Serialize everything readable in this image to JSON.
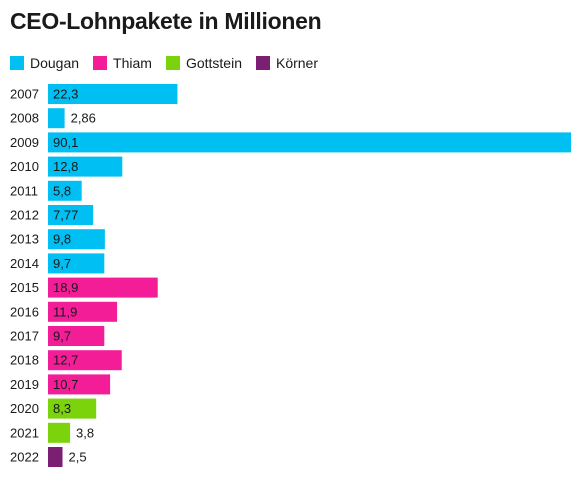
{
  "chart_data": {
    "type": "bar",
    "orientation": "horizontal",
    "title": "CEO-Lohnpakete in Millionen",
    "legend": [
      {
        "name": "Dougan",
        "color": "#00bff3"
      },
      {
        "name": "Thiam",
        "color": "#f31d98"
      },
      {
        "name": "Gottstein",
        "color": "#7ad30b"
      },
      {
        "name": "Körner",
        "color": "#7b1f73"
      }
    ],
    "categories": [
      "2007",
      "2008",
      "2009",
      "2010",
      "2011",
      "2012",
      "2013",
      "2014",
      "2015",
      "2016",
      "2017",
      "2018",
      "2019",
      "2020",
      "2021",
      "2022"
    ],
    "values": [
      22.3,
      2.86,
      90.1,
      12.8,
      5.8,
      7.77,
      9.8,
      9.7,
      18.9,
      11.9,
      9.7,
      12.7,
      10.7,
      8.3,
      3.8,
      2.5
    ],
    "value_labels": [
      "22,3",
      "2,86",
      "90,1",
      "12,8",
      "5,8",
      "7,77",
      "9,8",
      "9,7",
      "18,9",
      "11,9",
      "9,7",
      "12,7",
      "10,7",
      "8,3",
      "3,8",
      "2,5"
    ],
    "ceo": [
      "Dougan",
      "Dougan",
      "Dougan",
      "Dougan",
      "Dougan",
      "Dougan",
      "Dougan",
      "Dougan",
      "Thiam",
      "Thiam",
      "Thiam",
      "Thiam",
      "Thiam",
      "Gottstein",
      "Gottstein",
      "Körner"
    ],
    "xlim": [
      0,
      90.1
    ],
    "grid": false,
    "legend_position": "top-left"
  }
}
